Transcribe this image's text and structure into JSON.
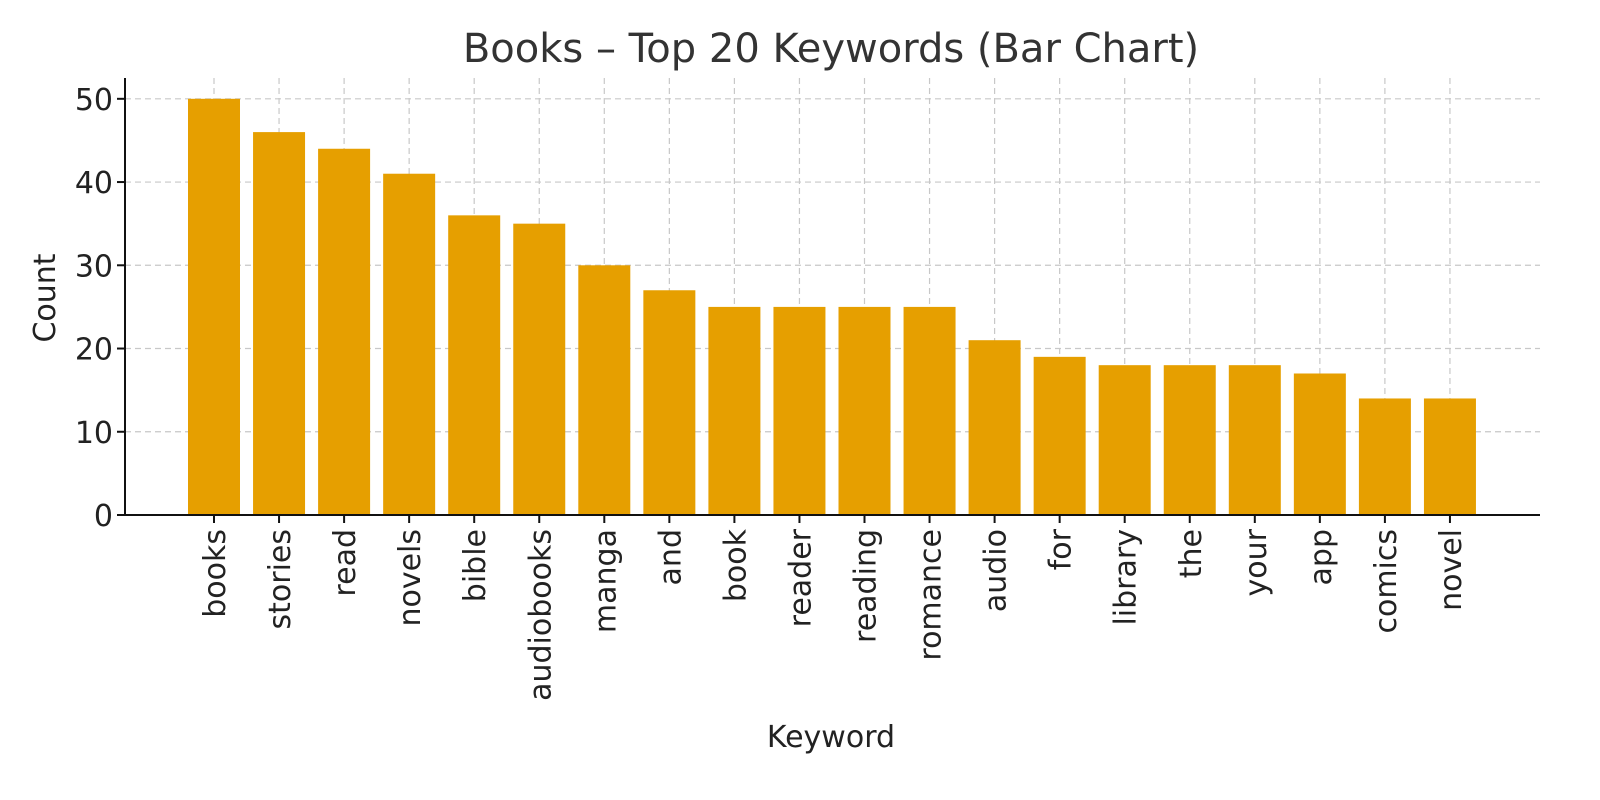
{
  "chart_data": {
    "type": "bar",
    "title": "Books – Top 20 Keywords (Bar Chart)",
    "xlabel": "Keyword",
    "ylabel": "Count",
    "categories": [
      "books",
      "stories",
      "read",
      "novels",
      "bible",
      "audiobooks",
      "manga",
      "and",
      "book",
      "reader",
      "reading",
      "romance",
      "audio",
      "for",
      "library",
      "the",
      "your",
      "app",
      "comics",
      "novel"
    ],
    "values": [
      50,
      46,
      44,
      41,
      36,
      35,
      30,
      27,
      25,
      25,
      25,
      25,
      21,
      19,
      18,
      18,
      18,
      17,
      14,
      14
    ],
    "ylim": [
      0,
      52.5
    ],
    "yticks": [
      0,
      10,
      20,
      30,
      40,
      50
    ],
    "grid": true,
    "bar_color": "#E69F00"
  }
}
